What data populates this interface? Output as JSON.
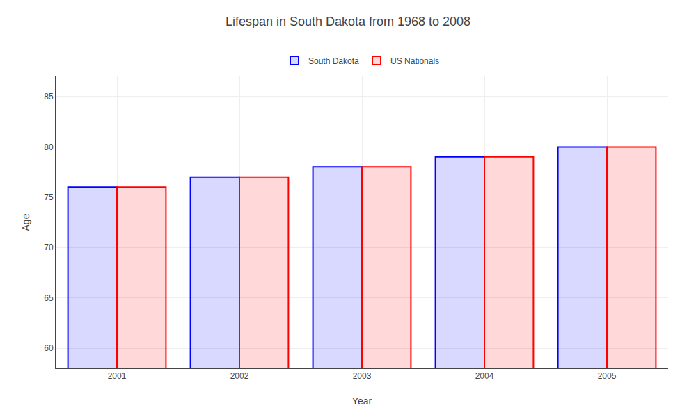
{
  "chart_data": {
    "type": "bar",
    "title": "Lifespan in South Dakota from 1968 to 2008",
    "xlabel": "Year",
    "ylabel": "Age",
    "categories": [
      "2001",
      "2002",
      "2003",
      "2004",
      "2005"
    ],
    "series": [
      {
        "name": "South Dakota",
        "color": "#0000ff",
        "values": [
          76,
          77,
          78,
          79,
          80
        ]
      },
      {
        "name": "US Nationals",
        "color": "#ff0000",
        "values": [
          76,
          77,
          78,
          79,
          80
        ]
      }
    ],
    "ylim": [
      58,
      87
    ],
    "yticks": [
      60,
      65,
      70,
      75,
      80,
      85
    ],
    "grid": true,
    "legend": "top"
  }
}
